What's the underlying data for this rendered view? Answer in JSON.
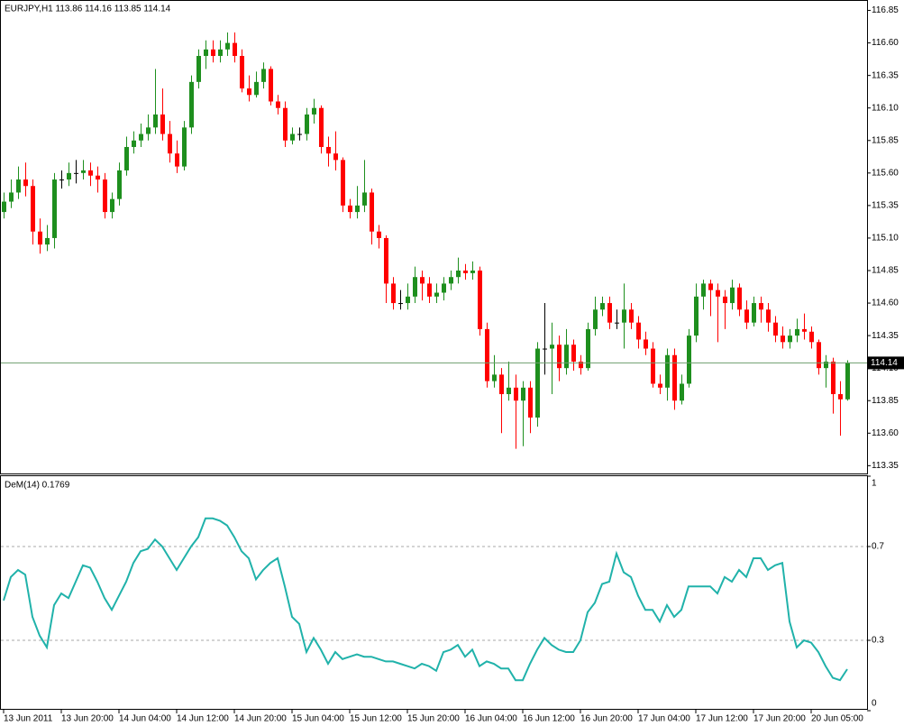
{
  "chart_data": [
    {
      "type": "candlestick",
      "title": "EURJPY,H1  113.86 114.16 113.85 114.14",
      "up_color": "#1e8f1e",
      "down_color": "#ff0000",
      "ylim": [
        113.29,
        116.93
      ],
      "yticks": [
        116.85,
        {
          "value": 116.6,
          "label": "116.60"
        },
        116.35,
        {
          "value": 116.1,
          "label": "116.10"
        },
        115.85,
        {
          "value": 115.6,
          "label": "115.60"
        },
        115.35,
        {
          "value": 115.1,
          "label": "115.10"
        },
        114.85,
        {
          "value": 114.6,
          "label": "114.60"
        },
        114.35,
        {
          "value": 114.1,
          "label": "114.10"
        },
        113.85,
        {
          "value": 113.6,
          "label": "113.60"
        },
        113.35
      ],
      "current_price": 114.14,
      "ohlc": [
        [
          115.3,
          115.45,
          115.25,
          115.38
        ],
        [
          115.38,
          115.55,
          115.33,
          115.45
        ],
        [
          115.45,
          115.65,
          115.4,
          115.55
        ],
        [
          115.55,
          115.68,
          115.42,
          115.5
        ],
        [
          115.5,
          115.55,
          115.05,
          115.15
        ],
        [
          115.15,
          115.25,
          114.98,
          115.05
        ],
        [
          115.05,
          115.2,
          115.0,
          115.1
        ],
        [
          115.1,
          115.6,
          115.02,
          115.55
        ],
        [
          115.55,
          115.62,
          115.48,
          115.55
        ],
        [
          115.55,
          115.68,
          115.5,
          115.6
        ],
        [
          115.6,
          115.7,
          115.52,
          115.6
        ],
        [
          115.6,
          115.7,
          115.55,
          115.62
        ],
        [
          115.62,
          115.68,
          115.5,
          115.58
        ],
        [
          115.58,
          115.65,
          115.45,
          115.55
        ],
        [
          115.55,
          115.6,
          115.25,
          115.3
        ],
        [
          115.3,
          115.45,
          115.25,
          115.4
        ],
        [
          115.4,
          115.68,
          115.35,
          115.62
        ],
        [
          115.62,
          115.88,
          115.58,
          115.8
        ],
        [
          115.8,
          115.92,
          115.75,
          115.85
        ],
        [
          115.85,
          115.98,
          115.8,
          115.9
        ],
        [
          115.9,
          116.05,
          115.85,
          115.95
        ],
        [
          115.95,
          116.4,
          115.9,
          116.05
        ],
        [
          116.05,
          116.25,
          115.85,
          115.9
        ],
        [
          115.9,
          116.0,
          115.68,
          115.75
        ],
        [
          115.75,
          115.85,
          115.6,
          115.65
        ],
        [
          115.65,
          116.0,
          115.62,
          115.95
        ],
        [
          115.95,
          116.35,
          115.9,
          116.3
        ],
        [
          116.3,
          116.55,
          116.25,
          116.5
        ],
        [
          116.5,
          116.62,
          116.4,
          116.55
        ],
        [
          116.55,
          116.62,
          116.45,
          116.5
        ],
        [
          116.5,
          116.62,
          116.45,
          116.55
        ],
        [
          116.55,
          116.68,
          116.5,
          116.6
        ],
        [
          116.6,
          116.68,
          116.45,
          116.5
        ],
        [
          116.5,
          116.55,
          116.22,
          116.25
        ],
        [
          116.25,
          116.35,
          116.15,
          116.2
        ],
        [
          116.2,
          116.38,
          116.18,
          116.3
        ],
        [
          116.3,
          116.45,
          116.25,
          116.4
        ],
        [
          116.4,
          116.42,
          116.12,
          116.15
        ],
        [
          116.15,
          116.2,
          116.05,
          116.1
        ],
        [
          116.1,
          116.15,
          115.8,
          115.85
        ],
        [
          115.85,
          115.95,
          115.82,
          115.9
        ],
        [
          115.9,
          115.95,
          115.85,
          115.9
        ],
        [
          115.9,
          116.1,
          115.85,
          116.05
        ],
        [
          116.05,
          116.17,
          115.98,
          116.1
        ],
        [
          116.1,
          116.12,
          115.75,
          115.8
        ],
        [
          115.8,
          115.88,
          115.65,
          115.75
        ],
        [
          115.75,
          115.92,
          115.62,
          115.7
        ],
        [
          115.7,
          115.72,
          115.3,
          115.35
        ],
        [
          115.35,
          115.4,
          115.25,
          115.3
        ],
        [
          115.3,
          115.5,
          115.25,
          115.35
        ],
        [
          115.35,
          115.7,
          115.3,
          115.45
        ],
        [
          115.45,
          115.48,
          115.05,
          115.15
        ],
        [
          115.15,
          115.2,
          115.02,
          115.1
        ],
        [
          115.1,
          115.12,
          114.6,
          114.75
        ],
        [
          114.75,
          114.8,
          114.55,
          114.6
        ],
        [
          114.6,
          114.7,
          114.55,
          114.6
        ],
        [
          114.6,
          114.75,
          114.55,
          114.65
        ],
        [
          114.65,
          114.88,
          114.6,
          114.8
        ],
        [
          114.8,
          114.85,
          114.62,
          114.75
        ],
        [
          114.75,
          114.8,
          114.6,
          114.65
        ],
        [
          114.65,
          114.75,
          114.6,
          114.68
        ],
        [
          114.68,
          114.8,
          114.62,
          114.75
        ],
        [
          114.75,
          114.85,
          114.7,
          114.8
        ],
        [
          114.8,
          114.95,
          114.75,
          114.85
        ],
        [
          114.85,
          114.9,
          114.78,
          114.83
        ],
        [
          114.83,
          114.92,
          114.78,
          114.85
        ],
        [
          114.85,
          114.88,
          114.35,
          114.4
        ],
        [
          114.4,
          114.45,
          113.95,
          114.0
        ],
        [
          114.0,
          114.2,
          113.95,
          114.05
        ],
        [
          114.05,
          114.1,
          113.6,
          113.9
        ],
        [
          113.9,
          114.15,
          113.85,
          113.95
        ],
        [
          113.95,
          114.05,
          113.48,
          113.85
        ],
        [
          113.85,
          114.0,
          113.5,
          113.95
        ],
        [
          113.95,
          114.0,
          113.6,
          113.72
        ],
        [
          113.72,
          114.3,
          113.65,
          114.25
        ],
        [
          114.25,
          114.6,
          114.05,
          114.25
        ],
        [
          114.25,
          114.45,
          113.9,
          114.28
        ],
        [
          114.28,
          114.35,
          114.0,
          114.1
        ],
        [
          114.1,
          114.4,
          114.05,
          114.28
        ],
        [
          114.28,
          114.32,
          114.08,
          114.15
        ],
        [
          114.15,
          114.2,
          114.05,
          114.1
        ],
        [
          114.1,
          114.45,
          114.08,
          114.4
        ],
        [
          114.4,
          114.65,
          114.35,
          114.55
        ],
        [
          114.55,
          114.65,
          114.5,
          114.6
        ],
        [
          114.6,
          114.65,
          114.4,
          114.45
        ],
        [
          114.45,
          114.55,
          114.4,
          114.45
        ],
        [
          114.45,
          114.75,
          114.25,
          114.55
        ],
        [
          114.55,
          114.6,
          114.4,
          114.45
        ],
        [
          114.45,
          114.5,
          114.25,
          114.32
        ],
        [
          114.32,
          114.38,
          114.2,
          114.25
        ],
        [
          114.25,
          114.3,
          113.95,
          113.98
        ],
        [
          113.98,
          114.05,
          113.9,
          113.95
        ],
        [
          113.95,
          114.25,
          113.85,
          114.2
        ],
        [
          114.2,
          114.25,
          113.78,
          113.85
        ],
        [
          113.85,
          114.05,
          113.82,
          113.98
        ],
        [
          113.98,
          114.4,
          113.95,
          114.35
        ],
        [
          114.35,
          114.75,
          114.3,
          114.65
        ],
        [
          114.65,
          114.78,
          114.55,
          114.75
        ],
        [
          114.75,
          114.78,
          114.5,
          114.7
        ],
        [
          114.7,
          114.75,
          114.3,
          114.65
        ],
        [
          114.65,
          114.7,
          114.4,
          114.6
        ],
        [
          114.6,
          114.78,
          114.55,
          114.72
        ],
        [
          114.72,
          114.75,
          114.5,
          114.55
        ],
        [
          114.55,
          114.62,
          114.4,
          114.45
        ],
        [
          114.45,
          114.65,
          114.42,
          114.6
        ],
        [
          114.6,
          114.65,
          114.45,
          114.55
        ],
        [
          114.55,
          114.6,
          114.38,
          114.45
        ],
        [
          114.45,
          114.5,
          114.3,
          114.35
        ],
        [
          114.35,
          114.42,
          114.25,
          114.3
        ],
        [
          114.3,
          114.4,
          114.25,
          114.35
        ],
        [
          114.35,
          114.48,
          114.3,
          114.4
        ],
        [
          114.4,
          114.52,
          114.32,
          114.38
        ],
        [
          114.38,
          114.42,
          114.25,
          114.3
        ],
        [
          114.3,
          114.32,
          114.05,
          114.1
        ],
        [
          114.1,
          114.2,
          113.95,
          114.15
        ],
        [
          114.15,
          114.18,
          113.75,
          113.9
        ],
        [
          113.9,
          114.0,
          113.58,
          113.86
        ],
        [
          113.86,
          114.16,
          113.85,
          114.14
        ]
      ]
    },
    {
      "type": "line",
      "title": "DeM(14) 0.1769",
      "color": "#20b2aa",
      "ylim": [
        0,
        1
      ],
      "yticks": [
        0,
        0.3,
        0.7,
        1
      ],
      "levels": [
        0.3,
        0.7
      ],
      "categories": [
        "13 Jun 2011",
        null,
        null,
        null,
        null,
        null,
        null,
        null,
        "13 Jun 20:00",
        null,
        null,
        null,
        null,
        null,
        null,
        null,
        "14 Jun 04:00",
        null,
        null,
        null,
        null,
        null,
        null,
        null,
        "14 Jun 12:00",
        null,
        null,
        null,
        null,
        null,
        null,
        null,
        "14 Jun 20:00",
        null,
        null,
        null,
        null,
        null,
        null,
        null,
        "15 Jun 04:00",
        null,
        null,
        null,
        null,
        null,
        null,
        null,
        "15 Jun 12:00",
        null,
        null,
        null,
        null,
        null,
        null,
        null,
        "15 Jun 20:00",
        null,
        null,
        null,
        null,
        null,
        null,
        null,
        "16 Jun 04:00",
        null,
        null,
        null,
        null,
        null,
        null,
        null,
        "16 Jun 12:00",
        null,
        null,
        null,
        null,
        null,
        null,
        null,
        "16 Jun 20:00",
        null,
        null,
        null,
        null,
        null,
        null,
        null,
        "17 Jun 04:00",
        null,
        null,
        null,
        null,
        null,
        null,
        null,
        "17 Jun 12:00",
        null,
        null,
        null,
        null,
        null,
        null,
        null,
        "17 Jun 20:00",
        null,
        null,
        null,
        null,
        null,
        null,
        null,
        "20 Jun 05:00",
        null,
        null,
        null,
        null,
        null
      ],
      "values": [
        0.47,
        0.57,
        0.6,
        0.58,
        0.4,
        0.32,
        0.27,
        0.45,
        0.5,
        0.48,
        0.55,
        0.62,
        0.61,
        0.55,
        0.48,
        0.43,
        0.49,
        0.55,
        0.63,
        0.68,
        0.69,
        0.73,
        0.7,
        0.65,
        0.6,
        0.65,
        0.7,
        0.74,
        0.82,
        0.82,
        0.81,
        0.79,
        0.74,
        0.68,
        0.65,
        0.56,
        0.6,
        0.63,
        0.65,
        0.53,
        0.4,
        0.37,
        0.25,
        0.31,
        0.26,
        0.2,
        0.25,
        0.22,
        0.23,
        0.24,
        0.23,
        0.23,
        0.22,
        0.21,
        0.21,
        0.2,
        0.19,
        0.18,
        0.2,
        0.19,
        0.17,
        0.25,
        0.26,
        0.28,
        0.23,
        0.26,
        0.19,
        0.21,
        0.2,
        0.18,
        0.18,
        0.13,
        0.13,
        0.2,
        0.26,
        0.31,
        0.28,
        0.26,
        0.25,
        0.25,
        0.3,
        0.42,
        0.46,
        0.54,
        0.55,
        0.67,
        0.59,
        0.57,
        0.49,
        0.43,
        0.43,
        0.38,
        0.45,
        0.4,
        0.43,
        0.53,
        0.53,
        0.53,
        0.53,
        0.5,
        0.57,
        0.55,
        0.6,
        0.57,
        0.65,
        0.65,
        0.6,
        0.62,
        0.63,
        0.38,
        0.27,
        0.3,
        0.29,
        0.25,
        0.19,
        0.14,
        0.13,
        0.1769
      ]
    }
  ]
}
